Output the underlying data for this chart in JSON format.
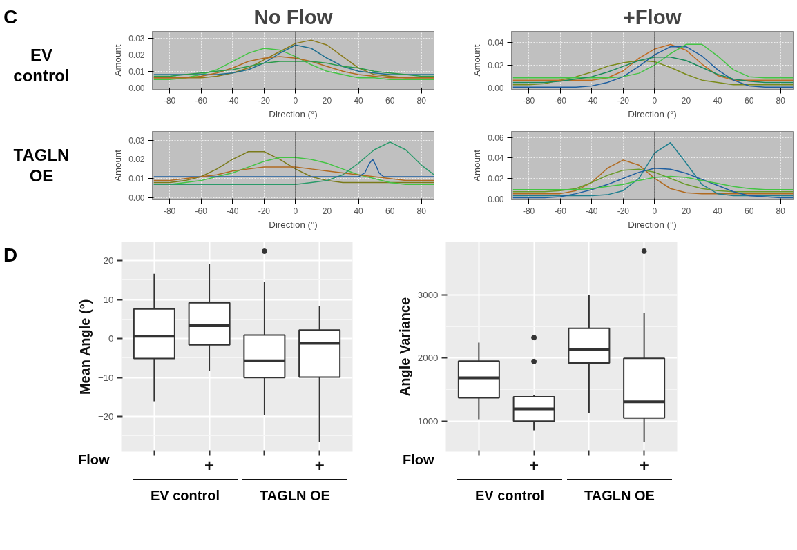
{
  "chart_data": [
    {
      "type": "line",
      "title": "No Flow",
      "xlabel": "Direction (°)",
      "ylabel": "Amount",
      "annotations": [
        "C",
        "EV control"
      ],
      "xlim": [
        -91,
        88
      ],
      "ylim": [
        -0.001,
        0.0343
      ],
      "xticks": [
        -80,
        -60,
        -40,
        -20,
        0,
        20,
        40,
        60,
        80
      ],
      "yticks": [
        {
          "value": 0,
          "label": "0.00"
        },
        {
          "value": 0.01,
          "label": "0.01"
        },
        {
          "value": 0.02,
          "label": "0.02"
        },
        {
          "value": 0.03,
          "label": "0.03"
        }
      ],
      "grid": true,
      "ref_lines": [
        {
          "axis": "x",
          "value": 0,
          "color": "#333333"
        }
      ],
      "x": [
        -90,
        -80,
        -70,
        -60,
        -50,
        -40,
        -30,
        -20,
        -10,
        0,
        10,
        20,
        30,
        40,
        50,
        60,
        70,
        80,
        88
      ],
      "series": [
        {
          "color": "#8a7a1a",
          "values": [
            0.006,
            0.006,
            0.006,
            0.006,
            0.007,
            0.009,
            0.012,
            0.017,
            0.022,
            0.027,
            0.029,
            0.026,
            0.019,
            0.012,
            0.008,
            0.007,
            0.006,
            0.006,
            0.006
          ]
        },
        {
          "color": "#44c444",
          "values": [
            0.005,
            0.005,
            0.006,
            0.008,
            0.011,
            0.016,
            0.021,
            0.024,
            0.023,
            0.019,
            0.014,
            0.01,
            0.008,
            0.006,
            0.006,
            0.005,
            0.005,
            0.005,
            0.005
          ]
        },
        {
          "color": "#1f6f8f",
          "values": [
            0.008,
            0.008,
            0.008,
            0.008,
            0.008,
            0.009,
            0.011,
            0.015,
            0.021,
            0.026,
            0.024,
            0.018,
            0.013,
            0.01,
            0.009,
            0.008,
            0.008,
            0.008,
            0.008
          ]
        },
        {
          "color": "#b06a20",
          "values": [
            0.006,
            0.006,
            0.006,
            0.007,
            0.009,
            0.012,
            0.016,
            0.018,
            0.019,
            0.018,
            0.016,
            0.013,
            0.01,
            0.008,
            0.007,
            0.006,
            0.006,
            0.006,
            0.006
          ]
        },
        {
          "color": "#2a9a4a",
          "values": [
            0.007,
            0.007,
            0.008,
            0.009,
            0.01,
            0.011,
            0.013,
            0.015,
            0.016,
            0.016,
            0.016,
            0.015,
            0.013,
            0.012,
            0.01,
            0.009,
            0.008,
            0.007,
            0.007
          ]
        }
      ]
    },
    {
      "type": "line",
      "title": "+Flow",
      "xlabel": "Direction (°)",
      "ylabel": "Amount",
      "xlim": [
        -91,
        88
      ],
      "ylim": [
        -0.001,
        0.0493
      ],
      "xticks": [
        -80,
        -60,
        -40,
        -20,
        0,
        20,
        40,
        60,
        80
      ],
      "yticks": [
        {
          "value": 0,
          "label": "0.00"
        },
        {
          "value": 0.02,
          "label": "0.02"
        },
        {
          "value": 0.04,
          "label": "0.04"
        }
      ],
      "grid": true,
      "ref_lines": [
        {
          "axis": "x",
          "value": 0,
          "color": "#333333"
        }
      ],
      "x": [
        -90,
        -80,
        -70,
        -60,
        -50,
        -40,
        -30,
        -20,
        -10,
        0,
        10,
        20,
        30,
        40,
        50,
        60,
        70,
        80,
        88
      ],
      "series": [
        {
          "color": "#7a8a1a",
          "values": [
            0.003,
            0.003,
            0.004,
            0.007,
            0.01,
            0.014,
            0.019,
            0.022,
            0.024,
            0.023,
            0.018,
            0.012,
            0.007,
            0.005,
            0.003,
            0.003,
            0.003,
            0.003,
            0.003
          ]
        },
        {
          "color": "#c06a20",
          "values": [
            0.007,
            0.007,
            0.007,
            0.007,
            0.007,
            0.007,
            0.009,
            0.015,
            0.026,
            0.034,
            0.038,
            0.033,
            0.021,
            0.011,
            0.007,
            0.007,
            0.007,
            0.007,
            0.007
          ]
        },
        {
          "color": "#1f5fa0",
          "values": [
            0.001,
            0.001,
            0.001,
            0.001,
            0.001,
            0.002,
            0.005,
            0.01,
            0.019,
            0.029,
            0.036,
            0.036,
            0.028,
            0.016,
            0.007,
            0.002,
            0.001,
            0.001,
            0.001
          ]
        },
        {
          "color": "#44c444",
          "values": [
            0.009,
            0.009,
            0.009,
            0.009,
            0.009,
            0.009,
            0.009,
            0.01,
            0.013,
            0.02,
            0.03,
            0.038,
            0.038,
            0.028,
            0.016,
            0.01,
            0.009,
            0.009,
            0.009
          ]
        },
        {
          "color": "#1a8a5a",
          "values": [
            0.005,
            0.005,
            0.005,
            0.006,
            0.008,
            0.01,
            0.014,
            0.019,
            0.024,
            0.027,
            0.027,
            0.024,
            0.018,
            0.012,
            0.008,
            0.006,
            0.005,
            0.005,
            0.005
          ]
        }
      ]
    },
    {
      "type": "line",
      "xlabel": "Direction (°)",
      "ylabel": "Amount",
      "annotations": [
        "TAGLN OE"
      ],
      "xlim": [
        -91,
        88
      ],
      "ylim": [
        -0.001,
        0.0345
      ],
      "xticks": [
        -80,
        -60,
        -40,
        -20,
        0,
        20,
        40,
        60,
        80
      ],
      "yticks": [
        {
          "value": 0,
          "label": "0.00"
        },
        {
          "value": 0.01,
          "label": "0.01"
        },
        {
          "value": 0.02,
          "label": "0.02"
        },
        {
          "value": 0.03,
          "label": "0.03"
        }
      ],
      "grid": true,
      "ref_lines": [
        {
          "axis": "x",
          "value": 0,
          "color": "#333333"
        }
      ],
      "x": [
        -90,
        -80,
        -70,
        -60,
        -50,
        -40,
        -30,
        -20,
        -10,
        0,
        10,
        20,
        30,
        40,
        50,
        60,
        70,
        80,
        88
      ],
      "series": [
        {
          "color": "#7a7a1a",
          "values": [
            0.008,
            0.008,
            0.009,
            0.011,
            0.015,
            0.02,
            0.024,
            0.024,
            0.02,
            0.015,
            0.011,
            0.009,
            0.008,
            0.008,
            0.008,
            0.008,
            0.008,
            0.008,
            0.008
          ]
        },
        {
          "color": "#44c444",
          "values": [
            0.007,
            0.007,
            0.008,
            0.009,
            0.011,
            0.013,
            0.016,
            0.019,
            0.021,
            0.021,
            0.02,
            0.018,
            0.015,
            0.012,
            0.01,
            0.008,
            0.007,
            0.007,
            0.007
          ]
        },
        {
          "color": "#2a9a6a",
          "values": [
            0.007,
            0.007,
            0.007,
            0.007,
            0.007,
            0.007,
            0.007,
            0.007,
            0.007,
            0.007,
            0.008,
            0.009,
            0.012,
            0.018,
            0.025,
            0.029,
            0.025,
            0.017,
            0.012
          ]
        },
        {
          "color": "#1f5fa0",
          "x": [
            -90,
            -50,
            0,
            40,
            44,
            47,
            49,
            51,
            53,
            56,
            60,
            88
          ],
          "values": [
            0.011,
            0.011,
            0.011,
            0.011,
            0.013,
            0.018,
            0.02,
            0.017,
            0.013,
            0.011,
            0.011,
            0.011
          ]
        },
        {
          "color": "#b06a20",
          "values": [
            0.009,
            0.009,
            0.01,
            0.011,
            0.012,
            0.014,
            0.015,
            0.016,
            0.016,
            0.016,
            0.015,
            0.014,
            0.013,
            0.012,
            0.011,
            0.01,
            0.009,
            0.009,
            0.009
          ]
        }
      ]
    },
    {
      "type": "line",
      "xlabel": "Direction (°)",
      "ylabel": "Amount",
      "xlim": [
        -91,
        88
      ],
      "ylim": [
        -0.001,
        0.066
      ],
      "xticks": [
        -80,
        -60,
        -40,
        -20,
        0,
        20,
        40,
        60,
        80
      ],
      "yticks": [
        {
          "value": 0,
          "label": "0.00"
        },
        {
          "value": 0.02,
          "label": "0.02"
        },
        {
          "value": 0.04,
          "label": "0.04"
        },
        {
          "value": 0.06,
          "label": "0.06"
        }
      ],
      "grid": true,
      "ref_lines": [
        {
          "axis": "x",
          "value": 0,
          "color": "#333333"
        }
      ],
      "x": [
        -90,
        -80,
        -70,
        -60,
        -50,
        -40,
        -30,
        -20,
        -10,
        0,
        10,
        20,
        30,
        40,
        50,
        60,
        70,
        80,
        88
      ],
      "series": [
        {
          "color": "#b06a20",
          "values": [
            0.005,
            0.005,
            0.005,
            0.005,
            0.008,
            0.016,
            0.03,
            0.038,
            0.033,
            0.02,
            0.01,
            0.006,
            0.005,
            0.005,
            0.005,
            0.005,
            0.005,
            0.005,
            0.005
          ]
        },
        {
          "color": "#1f7f8f",
          "values": [
            0.003,
            0.003,
            0.003,
            0.003,
            0.003,
            0.003,
            0.004,
            0.008,
            0.02,
            0.045,
            0.055,
            0.035,
            0.014,
            0.005,
            0.003,
            0.003,
            0.003,
            0.003,
            0.003
          ]
        },
        {
          "color": "#6a9a2a",
          "values": [
            0.007,
            0.007,
            0.007,
            0.008,
            0.01,
            0.016,
            0.023,
            0.028,
            0.029,
            0.026,
            0.02,
            0.014,
            0.01,
            0.008,
            0.007,
            0.007,
            0.007,
            0.007,
            0.007
          ]
        },
        {
          "color": "#1f5fa0",
          "values": [
            0.001,
            0.001,
            0.001,
            0.002,
            0.005,
            0.009,
            0.014,
            0.02,
            0.026,
            0.03,
            0.029,
            0.025,
            0.019,
            0.013,
            0.007,
            0.003,
            0.002,
            0.001,
            0.001
          ]
        },
        {
          "color": "#44c444",
          "values": [
            0.009,
            0.009,
            0.009,
            0.009,
            0.009,
            0.01,
            0.012,
            0.014,
            0.018,
            0.021,
            0.022,
            0.021,
            0.018,
            0.015,
            0.012,
            0.01,
            0.009,
            0.009,
            0.009
          ]
        }
      ]
    },
    {
      "type": "box",
      "ylabel": "Mean Angle (°)",
      "annotations": [
        "D",
        "Flow",
        "EV control",
        "TAGLN OE"
      ],
      "categories": [
        null,
        "+",
        null,
        "+"
      ],
      "ylim": [
        -29,
        24.8
      ],
      "yticks": [
        {
          "value": -20,
          "label": "−20"
        },
        {
          "value": -10,
          "label": "−10"
        },
        0,
        10,
        20
      ],
      "grid": true,
      "boxes": [
        {
          "low": -16.1,
          "q1": -5.1,
          "median": 0.6,
          "q3": 7.6,
          "high": 16.6
        },
        {
          "low": -8.4,
          "q1": -1.6,
          "median": 3.3,
          "q3": 9.2,
          "high": 19.2
        },
        {
          "low": -19.7,
          "q1": -10.0,
          "median": -5.7,
          "q3": 0.9,
          "high": 14.6,
          "outliers": [
            22.4
          ]
        },
        {
          "low": -26.6,
          "q1": -9.9,
          "median": -1.2,
          "q3": 2.2,
          "high": 8.4
        }
      ]
    },
    {
      "type": "box",
      "ylabel": "Angle Variance",
      "annotations": [
        "Flow",
        "EV control",
        "TAGLN OE"
      ],
      "categories": [
        null,
        "+",
        null,
        "+"
      ],
      "ylim": [
        514,
        3847
      ],
      "yticks": [
        1000,
        2000,
        3000
      ],
      "grid": true,
      "boxes": [
        {
          "low": 1030,
          "q1": 1370,
          "median": 1687,
          "q3": 1952,
          "high": 2247
        },
        {
          "low": 853,
          "q1": 1000,
          "median": 1193,
          "q3": 1385,
          "high": 1410,
          "outliers": [
            2326,
            1947
          ]
        },
        {
          "low": 1122,
          "q1": 1923,
          "median": 2142,
          "q3": 2473,
          "high": 3000
        },
        {
          "low": 672,
          "q1": 1048,
          "median": 1306,
          "q3": 1996,
          "high": 2724,
          "outliers": [
            3700
          ]
        }
      ]
    }
  ]
}
